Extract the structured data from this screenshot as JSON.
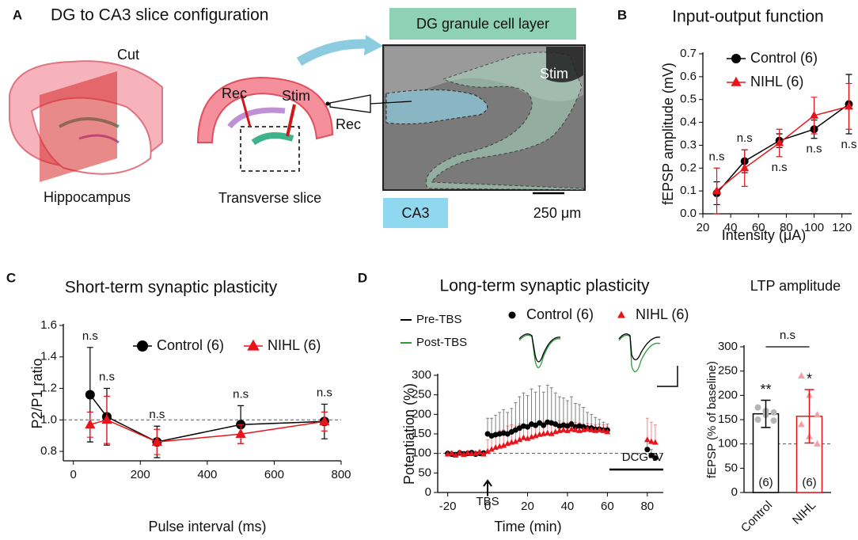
{
  "panel_a": {
    "label": "A",
    "title": "DG to CA3 slice configuration",
    "cut": "Cut",
    "hippocampus": "Hippocampus",
    "rec": "Rec",
    "stim": "Stim",
    "transverse": "Transverse slice",
    "dg_layer": "DG granule cell layer",
    "stim_image": "Stim",
    "rec_image": "Rec",
    "ca3": "CA3",
    "scale": "250 μm"
  },
  "chart_data": [
    {
      "panel": "B",
      "type": "line",
      "title": "Input-output function",
      "xlabel": "Intensity (μA)",
      "ylabel": "fEPSP amplitude (mV)",
      "x": [
        30,
        50,
        75,
        100,
        125
      ],
      "series": [
        {
          "name": "Control (6)",
          "color": "#000000",
          "marker": "circle",
          "values": [
            0.09,
            0.23,
            0.32,
            0.37,
            0.48
          ],
          "errors": [
            0.05,
            0.05,
            0.03,
            0.04,
            0.13
          ]
        },
        {
          "name": "NIHL (6)",
          "color": "#e8141c",
          "marker": "triangle",
          "values": [
            0.1,
            0.2,
            0.31,
            0.43,
            0.47
          ],
          "errors": [
            0.1,
            0.08,
            0.06,
            0.08,
            0.1
          ]
        }
      ],
      "annotations": [
        "n.s",
        "n.s",
        "n.s",
        "n.s",
        "n.s"
      ],
      "xlim": [
        20,
        127
      ],
      "xticks": [
        20,
        40,
        60,
        80,
        100,
        120
      ],
      "ylim": [
        0,
        0.7
      ],
      "yticks": [
        {
          "value": 0,
          "label": "0.0"
        },
        0.1,
        0.2,
        0.3,
        0.4,
        0.5,
        0.6,
        0.7
      ]
    },
    {
      "panel": "C",
      "type": "line",
      "title": "Short-term synaptic plasticity",
      "xlabel": "Pulse interval (ms)",
      "ylabel": "P2/P1 ratio",
      "x": [
        50,
        100,
        250,
        500,
        750
      ],
      "series": [
        {
          "name": "Control (6)",
          "color": "#000000",
          "marker": "circle",
          "values": [
            1.16,
            1.02,
            0.86,
            0.97,
            0.99
          ],
          "errors": [
            0.3,
            0.18,
            0.1,
            0.12,
            0.11
          ]
        },
        {
          "name": "NIHL (6)",
          "color": "#e8141c",
          "marker": "triangle",
          "values": [
            0.97,
            1.0,
            0.86,
            0.91,
            0.99
          ],
          "errors": [
            0.08,
            0.15,
            0.08,
            0.06,
            0.06
          ]
        }
      ],
      "annotations": [
        "n.s",
        "n.s",
        "n.s",
        "n.s",
        "n.s"
      ],
      "ref_line": 1,
      "xlim": [
        -30,
        800
      ],
      "xticks": [
        0,
        200,
        400,
        600,
        800
      ],
      "ylim": [
        0.74,
        1.6
      ],
      "yticks": [
        0.8,
        {
          "value": 1,
          "label": "1.0"
        },
        1.2,
        1.4,
        1.6
      ]
    },
    {
      "panel": "D",
      "type": "scatter",
      "title": "Long-term synaptic plasticity",
      "xlabel": "Time (min)",
      "ylabel": "Potentiation (%)",
      "traces": [
        {
          "name": "Pre-TBS",
          "color": "#000000"
        },
        {
          "name": "Post-TBS",
          "color": "#2a9d3a"
        }
      ],
      "x": [
        -20,
        -18,
        -16,
        -14,
        -12,
        -10,
        -8,
        -6,
        -4,
        -2,
        0,
        2,
        4,
        6,
        8,
        10,
        12,
        14,
        16,
        18,
        20,
        22,
        24,
        26,
        28,
        30,
        32,
        34,
        36,
        38,
        40,
        42,
        44,
        46,
        48,
        50,
        52,
        54,
        56,
        58,
        60,
        80,
        82,
        84
      ],
      "series": [
        {
          "name": "Control (6)",
          "color": "#000000",
          "marker": "circle",
          "values": [
            100,
            98,
            97,
            101,
            99,
            100,
            102,
            98,
            100,
            101,
            150,
            145,
            148,
            150,
            152,
            150,
            155,
            160,
            165,
            170,
            168,
            175,
            172,
            178,
            172,
            180,
            178,
            175,
            170,
            172,
            170,
            175,
            168,
            170,
            168,
            165,
            165,
            162,
            162,
            160,
            160,
            110,
            95,
            88
          ],
          "errors": [
            5,
            5,
            5,
            5,
            5,
            5,
            5,
            5,
            5,
            5,
            40,
            45,
            50,
            55,
            60,
            55,
            60,
            70,
            80,
            85,
            80,
            90,
            85,
            95,
            85,
            95,
            90,
            80,
            75,
            70,
            65,
            70,
            60,
            55,
            50,
            40,
            35,
            30,
            25,
            20,
            15,
            20,
            15,
            10
          ]
        },
        {
          "name": "NIHL (6)",
          "color": "#e8141c",
          "marker": "triangle",
          "values": [
            98,
            100,
            95,
            102,
            97,
            101,
            99,
            100,
            103,
            98,
            105,
            110,
            115,
            118,
            120,
            125,
            128,
            130,
            135,
            140,
            138,
            142,
            145,
            148,
            150,
            152,
            150,
            155,
            158,
            160,
            158,
            162,
            160,
            158,
            160,
            162,
            160,
            158,
            160,
            158,
            155,
            135,
            130,
            128
          ],
          "errors": [
            6,
            6,
            6,
            6,
            6,
            6,
            6,
            6,
            6,
            6,
            30,
            35,
            35,
            40,
            40,
            45,
            45,
            40,
            40,
            35,
            35,
            30,
            30,
            30,
            30,
            25,
            25,
            25,
            25,
            20,
            20,
            20,
            20,
            20,
            15,
            15,
            15,
            15,
            15,
            15,
            15,
            55,
            50,
            45
          ]
        }
      ],
      "ref_line": 100,
      "event": {
        "label": "TBS",
        "x": 0
      },
      "drug": {
        "label": "DCG-IV",
        "period": [
          61,
          88
        ]
      },
      "xlim": [
        -25,
        88
      ],
      "xticks": [
        -20,
        0,
        20,
        40,
        60,
        80
      ],
      "ylim": [
        0,
        300
      ],
      "yticks": [
        0,
        50,
        100,
        150,
        200,
        250,
        300
      ]
    },
    {
      "type": "bar",
      "title": "LTP amplitude",
      "ylabel": "fEPSP (% of baseline)",
      "categories": [
        "Control",
        "NIHL"
      ],
      "values": [
        162,
        157
      ],
      "errors": [
        28,
        55
      ],
      "colors": [
        "#000000",
        "#e8141c"
      ],
      "point_colors": [
        "#b5b5b5",
        "#f4a0a0"
      ],
      "markers": [
        "circle",
        "triangle"
      ],
      "points": [
        [
          175,
          160,
          165,
          150,
          168,
          148
        ],
        [
          240,
          200,
          160,
          140,
          115,
          100
        ]
      ],
      "n_labels": [
        "(6)",
        "(6)"
      ],
      "significance": [
        "**",
        "*"
      ],
      "comparison": "n.s",
      "ref_line": 100,
      "ylim": [
        0,
        300
      ],
      "yticks": [
        0,
        50,
        100,
        150,
        200,
        250,
        300
      ]
    }
  ]
}
